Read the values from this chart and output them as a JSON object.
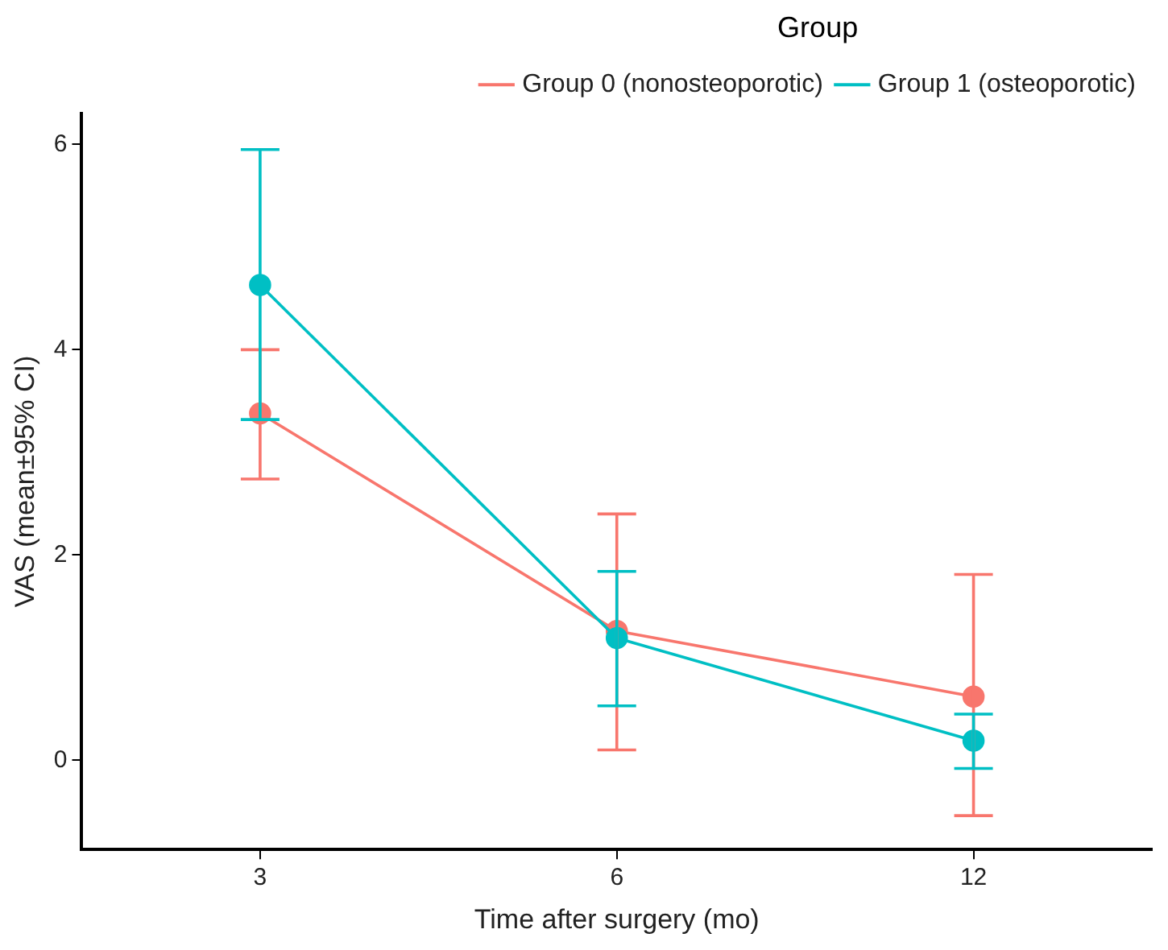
{
  "chart_data": {
    "type": "line",
    "xlabel": "Time after surgery (mo)",
    "ylabel": "VAS (mean±95% CI)",
    "legend_title": "Group",
    "categories": [
      "3",
      "6",
      "12"
    ],
    "ylim": [
      -0.87,
      6.3
    ],
    "yticks": [
      0,
      2,
      4,
      6
    ],
    "grid": false,
    "legend": "top right",
    "marker": "circle",
    "line_style": "solid",
    "series": [
      {
        "name": "Group 0 (nonosteoporotic)",
        "color": "#f8766d",
        "values": [
          3.38,
          1.26,
          0.62
        ],
        "errors": [
          [
            2.74,
            4.0
          ],
          [
            0.1,
            2.4
          ],
          [
            -0.54,
            1.81
          ]
        ]
      },
      {
        "name": "Group 1 (osteoporotic)",
        "color": "#00bfc4",
        "values": [
          4.63,
          1.19,
          0.19
        ],
        "errors": [
          [
            3.32,
            5.95
          ],
          [
            0.53,
            1.84
          ],
          [
            -0.08,
            0.45
          ]
        ]
      }
    ]
  }
}
